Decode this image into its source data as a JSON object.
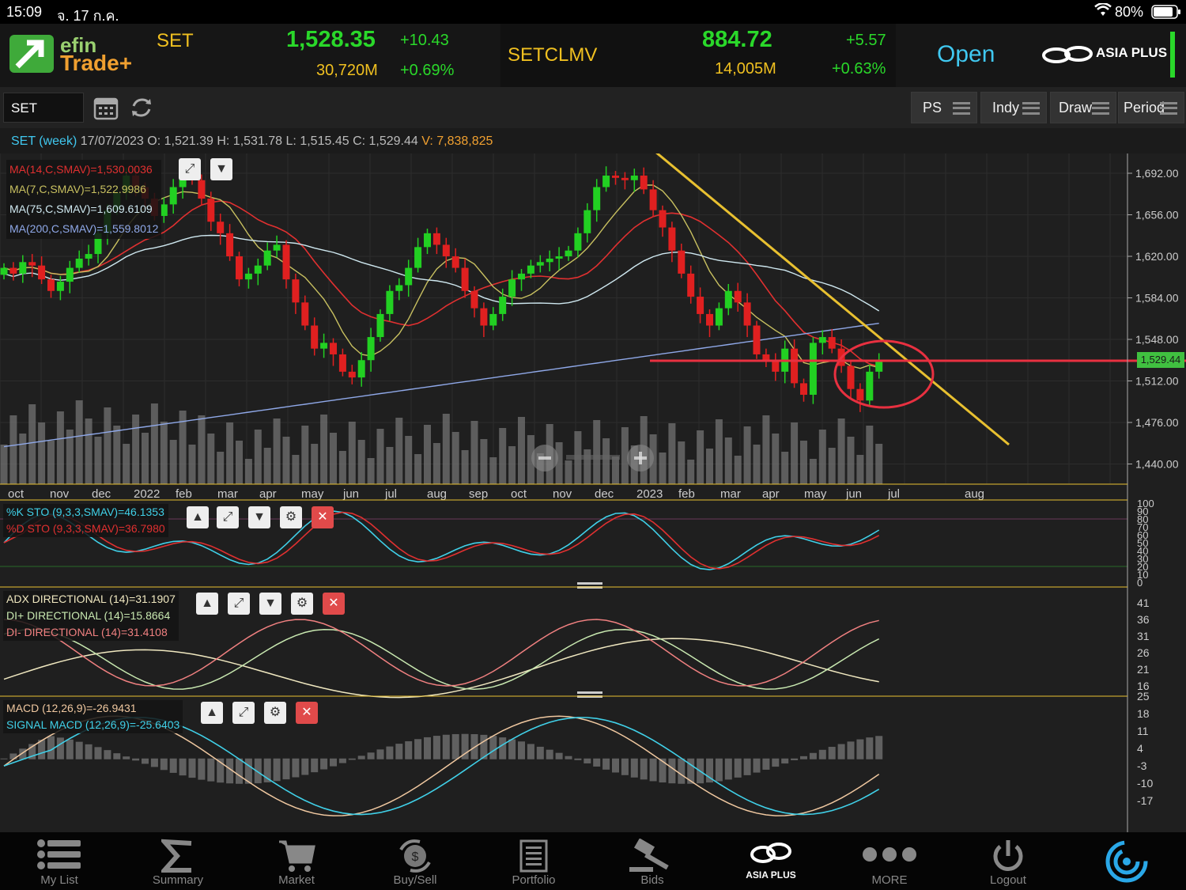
{
  "status_bar": {
    "time": "15:09",
    "date": "จ. 17 ก.ค.",
    "battery": "80%"
  },
  "header": {
    "logo_top": "efin",
    "logo_bottom": "Trade+",
    "index1": {
      "name": "SET",
      "value": "1,528.35",
      "change": "+10.43",
      "volume": "30,720M",
      "pct": "+0.69%"
    },
    "index2": {
      "name": "SETCLMV",
      "value": "884.72",
      "change": "+5.57",
      "volume": "14,005M",
      "pct": "+0.63%"
    },
    "market_status": "Open",
    "broker": "ASIA PLUS"
  },
  "toolbar": {
    "symbol": "SET",
    "buttons": [
      {
        "label": "PS"
      },
      {
        "label": "Indy"
      },
      {
        "label": "Draw"
      },
      {
        "label": "Period"
      }
    ]
  },
  "info_bar": {
    "title": "SET (week)",
    "date": "17/07/2023",
    "o_label": "O:",
    "o": "1,521.39",
    "h_label": "H:",
    "h": "1,531.78",
    "l_label": "L:",
    "l": "1,515.45",
    "c_label": "C:",
    "c": "1,529.44",
    "v_label": "V:",
    "v": "7,838,825"
  },
  "price_panel": {
    "legend": [
      {
        "text": "MA(14,C,SMAV)=1,530.0036",
        "color": "#e03030"
      },
      {
        "text": "MA(7,C,SMAV)=1,522.9986",
        "color": "#c8c060"
      },
      {
        "text": "MA(75,C,SMAV)=1,609.6109",
        "color": "#cfe8f0"
      },
      {
        "text": "MA(200,C,SMAV)=1,559.8012",
        "color": "#8fa8e8"
      }
    ],
    "y_ticks": [
      "1,692.00",
      "1,656.00",
      "1,620.00",
      "1,584.00",
      "1,548.00",
      "1,512.00",
      "1,476.00",
      "1,440.00"
    ],
    "last_price_tag": "1,529.44",
    "x_labels": [
      "oct",
      "nov",
      "dec",
      "2022",
      "feb",
      "mar",
      "apr",
      "may",
      "jun",
      "jul",
      "aug",
      "sep",
      "oct",
      "nov",
      "dec",
      "2023",
      "feb",
      "mar",
      "apr",
      "may",
      "jun",
      "jul",
      "aug"
    ]
  },
  "sto_panel": {
    "legend": [
      {
        "text": "%K STO (9,3,3,SMAV)=46.1353",
        "color": "#40d0e8"
      },
      {
        "text": "%D STO (9,3,3,SMAV)=36.7980",
        "color": "#e03030"
      }
    ],
    "y_ticks": [
      "100",
      "90",
      "80",
      "70",
      "60",
      "50",
      "40",
      "30",
      "20",
      "10",
      "0"
    ]
  },
  "adx_panel": {
    "legend": [
      {
        "text": "ADX DIRECTIONAL (14)=31.1907",
        "color": "#f0e8c0"
      },
      {
        "text": "DI+ DIRECTIONAL (14)=15.8664",
        "color": "#c8e8b0"
      },
      {
        "text": "DI- DIRECTIONAL (14)=31.4108",
        "color": "#f08080"
      }
    ],
    "y_ticks": [
      "41",
      "36",
      "31",
      "26",
      "21",
      "16"
    ]
  },
  "macd_panel": {
    "legend": [
      {
        "text": "MACD (12,26,9)=-26.9431",
        "color": "#f0c8a0"
      },
      {
        "text": "SIGNAL MACD (12,26,9)=-25.6403",
        "color": "#40d0e8"
      }
    ],
    "y_ticks": [
      "25",
      "18",
      "11",
      "4",
      "-3",
      "-10",
      "-17"
    ]
  },
  "tabs": [
    {
      "label": "My List",
      "icon": "list-icon"
    },
    {
      "label": "Summary",
      "icon": "sigma-icon"
    },
    {
      "label": "Market",
      "icon": "cart-icon"
    },
    {
      "label": "Buy/Sell",
      "icon": "buysell-icon"
    },
    {
      "label": "Portfolio",
      "icon": "portfolio-icon"
    },
    {
      "label": "Bids",
      "icon": "gavel-icon"
    },
    {
      "label": "ASIA PLUS",
      "icon": "asiaplus-logo"
    },
    {
      "label": "MORE",
      "icon": "more-icon"
    },
    {
      "label": "Logout",
      "icon": "power-icon"
    }
  ],
  "colors": {
    "up": "#22d022",
    "down": "#e02020",
    "accent": "#40c8f0",
    "header_gold": "#f0c020"
  }
}
